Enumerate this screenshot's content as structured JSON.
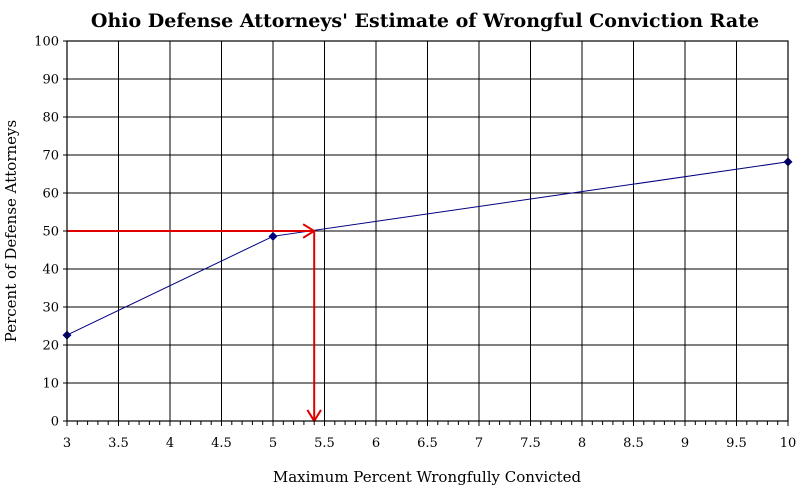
{
  "chart_data": {
    "type": "line",
    "title": "Ohio Defense Attorneys' Estimate of Wrongful Conviction Rate",
    "xlabel": "Maximum Percent Wrongfully Convicted",
    "ylabel": "Percent of Defense Attorneys",
    "xlim": [
      3,
      10
    ],
    "ylim": [
      0,
      100
    ],
    "x_major_ticks": [
      3,
      3.5,
      4,
      4.5,
      5,
      5.5,
      6,
      6.5,
      7,
      7.5,
      8,
      8.5,
      9,
      9.5,
      10
    ],
    "x_tick_labels": [
      "3",
      "3.5",
      "4",
      "4.5",
      "5",
      "5.5",
      "6",
      "6.5",
      "7",
      "7.5",
      "8",
      "8.5",
      "9",
      "9.5",
      "10"
    ],
    "y_ticks": [
      0,
      10,
      20,
      30,
      40,
      50,
      60,
      70,
      80,
      90,
      100
    ],
    "y_tick_labels": [
      "0",
      "10",
      "20",
      "30",
      "40",
      "50",
      "60",
      "70",
      "80",
      "90",
      "100"
    ],
    "grid": true,
    "series": [
      {
        "x": [
          3,
          5,
          10
        ],
        "y": [
          22.6,
          48.6,
          68.2
        ],
        "color": "#000080"
      }
    ],
    "annotations": [
      {
        "type": "arrow",
        "from": [
          3,
          50
        ],
        "to": [
          5.4,
          50
        ],
        "color": "#e00000"
      },
      {
        "type": "arrow",
        "from": [
          5.4,
          50
        ],
        "to": [
          5.4,
          0
        ],
        "color": "#e00000"
      }
    ]
  }
}
